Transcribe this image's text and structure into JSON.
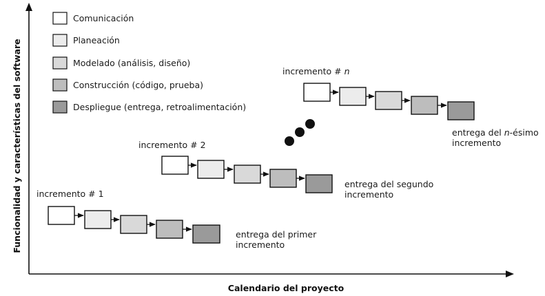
{
  "axes": {
    "x_label": "Calendario del proyecto",
    "y_label": "Funcionalidad y características del software"
  },
  "legend": [
    {
      "key": "comunicacion",
      "label": "Comunicación",
      "color": "#ffffff"
    },
    {
      "key": "planeacion",
      "label": "Planeación",
      "color": "#ececec"
    },
    {
      "key": "modelado",
      "label": "Modelado (análisis, diseño)",
      "color": "#d9d9d9"
    },
    {
      "key": "construccion",
      "label": "Construcción (código, prueba)",
      "color": "#bdbdbd"
    },
    {
      "key": "despliegue",
      "label": "Despliegue (entrega, retroalimentación)",
      "color": "#9a9a9a"
    }
  ],
  "increments": [
    {
      "title": "incremento # 1",
      "delivery_line1": "entrega del primer",
      "delivery_line2": "incremento"
    },
    {
      "title": "incremento # 2",
      "delivery_line1": "entrega del segundo",
      "delivery_line2": "incremento"
    },
    {
      "title_prefix": "incremento # ",
      "title_italic": "n",
      "delivery_line1_prefix": "entrega del ",
      "delivery_line1_italic": "n",
      "delivery_line1_suffix": "-ésimo",
      "delivery_line2": "incremento"
    }
  ]
}
